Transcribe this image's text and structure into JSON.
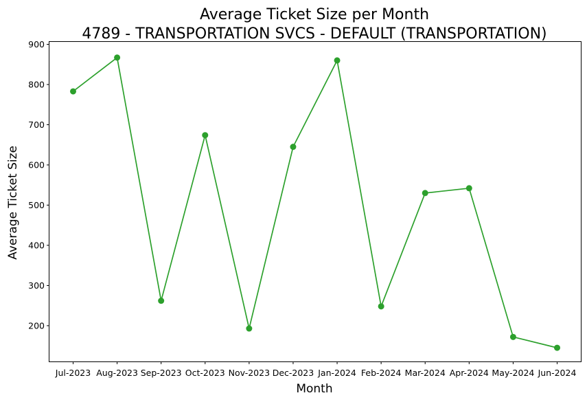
{
  "chart_data": {
    "type": "line",
    "title": "Average Ticket Size per Month",
    "subtitle": "4789 - TRANSPORTATION SVCS - DEFAULT (TRANSPORTATION)",
    "xlabel": "Month",
    "ylabel": "Average Ticket Size",
    "categories": [
      "Jul-2023",
      "Aug-2023",
      "Sep-2023",
      "Oct-2023",
      "Nov-2023",
      "Dec-2023",
      "Jan-2024",
      "Feb-2024",
      "Mar-2024",
      "Apr-2024",
      "May-2024",
      "Jun-2024"
    ],
    "series": [
      {
        "values": [
          783,
          867,
          262,
          674,
          193,
          645,
          860,
          248,
          530,
          542,
          172,
          145
        ],
        "color": "#2ca02c",
        "marker": "circle"
      }
    ],
    "ylim": [
      111,
      906
    ],
    "yticks": [
      200,
      300,
      400,
      500,
      600,
      700,
      800,
      900
    ],
    "grid": false,
    "legend": "none"
  }
}
